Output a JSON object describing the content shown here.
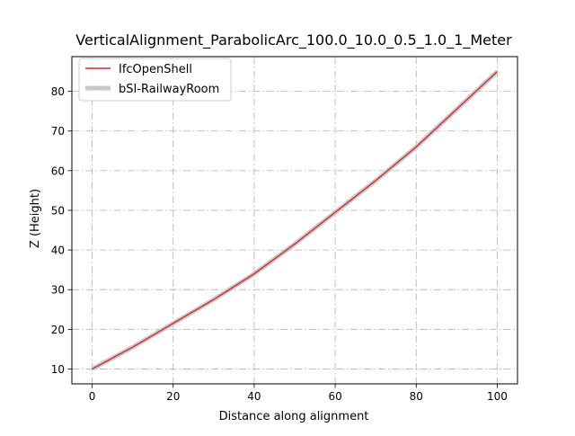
{
  "chart_data": {
    "type": "line",
    "title": "VerticalAlignment_ParabolicArc_100.0_10.0_0.5_1.0_1_Meter",
    "xlabel": "Distance along alignment",
    "ylabel": "Z (Height)",
    "xlim": [
      -5,
      105
    ],
    "ylim": [
      6.25,
      88.75
    ],
    "x_ticks": [
      0,
      20,
      40,
      60,
      80,
      100
    ],
    "y_ticks": [
      10,
      20,
      30,
      40,
      50,
      60,
      70,
      80
    ],
    "grid": true,
    "grid_style": "dash-dot",
    "legend_position": "top-left",
    "series": [
      {
        "name": "IfcOpenShell",
        "color": "#d62728",
        "style": "thin",
        "x": [
          0,
          10,
          20,
          30,
          40,
          50,
          60,
          70,
          80,
          90,
          100
        ],
        "y": [
          10,
          15.5,
          21.5,
          27.5,
          34,
          41.5,
          49.5,
          57.5,
          66,
          75.5,
          85
        ]
      },
      {
        "name": "bSI-RailwayRoom",
        "color": "#c8c8c8",
        "style": "thick",
        "x": [
          0,
          10,
          20,
          30,
          40,
          50,
          60,
          70,
          80,
          90,
          100
        ],
        "y": [
          10,
          15.5,
          21.5,
          27.5,
          34,
          41.5,
          49.5,
          57.5,
          66,
          75.5,
          85
        ]
      }
    ]
  }
}
